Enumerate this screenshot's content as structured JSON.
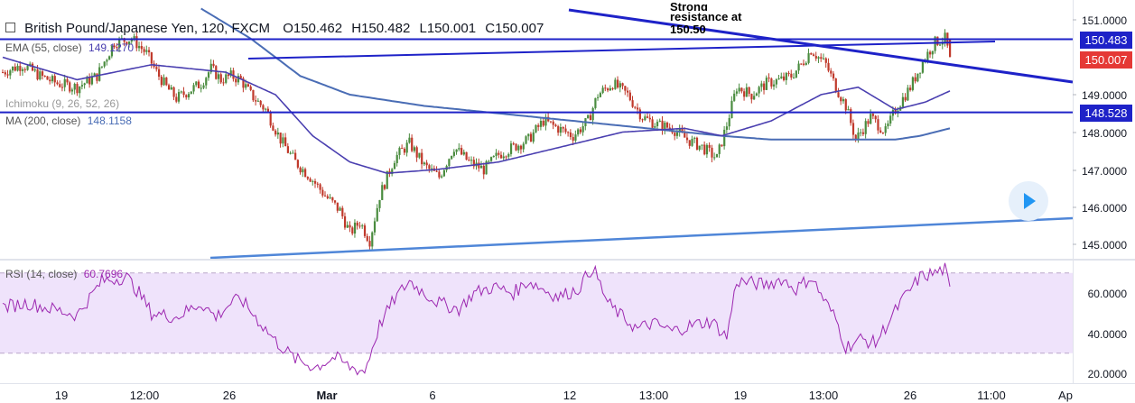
{
  "header": {
    "symbol": "British Pound/Japanese Yen, 120, FXCM",
    "open": "O150.462",
    "high": "H150.482",
    "low": "L150.001",
    "close": "C150.007"
  },
  "indicators": {
    "ema": {
      "label": "EMA (55, close)",
      "value": "149.1270"
    },
    "ichimoku": {
      "label": "Ichimoku (9, 26, 52, 26)"
    },
    "ma": {
      "label": "MA (200, close)",
      "value": "148.1158"
    },
    "rsi": {
      "label": "RSI (14, close)",
      "value": "60.7696"
    }
  },
  "annotation": {
    "line1": "Strong",
    "line2": "resistance at",
    "line3": "150.50"
  },
  "price_tags": {
    "resistance": {
      "text": "150.483",
      "color": "#1e22c8"
    },
    "current": {
      "text": "150.007",
      "color": "#e53935"
    },
    "support": {
      "text": "148.528",
      "color": "#1e22c8"
    }
  },
  "price_axis": [
    "151.0000",
    "149.0000",
    "148.0000",
    "147.0000",
    "146.0000",
    "145.0000"
  ],
  "rsi_axis": [
    "60.0000",
    "40.0000",
    "20.0000"
  ],
  "time_axis": [
    "19",
    "12:00",
    "26",
    "Mar",
    "6",
    "12",
    "13:00",
    "19",
    "13:00",
    "26",
    "11:00",
    "Ap"
  ],
  "colors": {
    "candle_up": "#4a8c3f",
    "candle_down": "#c0392b",
    "ema": "#4a3fb0",
    "ma": "#4a6db5",
    "trendline": "#1e22c8",
    "support_trend": "#4f86d8",
    "rsi_line": "#9c27b0",
    "rsi_band": "#efe3fb"
  },
  "chart_data": {
    "type": "candlestick",
    "symbol": "British Pound/Japanese Yen",
    "timeframe": "120",
    "ylim": [
      144.5,
      151.2
    ],
    "rsi_ylim": [
      15,
      80
    ],
    "rsi_band": [
      30,
      70
    ],
    "horizontal_levels": [
      150.483,
      148.528
    ],
    "close_path": [
      [
        0,
        149.6
      ],
      [
        8,
        149.8
      ],
      [
        15,
        149.5
      ],
      [
        22,
        149.3
      ],
      [
        30,
        149.2
      ],
      [
        38,
        149.5
      ],
      [
        45,
        150.4
      ],
      [
        52,
        150.5
      ],
      [
        58,
        150.1
      ],
      [
        62,
        149.6
      ],
      [
        66,
        149.2
      ],
      [
        70,
        148.9
      ],
      [
        75,
        149.1
      ],
      [
        80,
        149.3
      ],
      [
        84,
        149.7
      ],
      [
        88,
        149.4
      ],
      [
        92,
        149.5
      ],
      [
        96,
        149.4
      ],
      [
        100,
        149.0
      ],
      [
        106,
        148.6
      ],
      [
        112,
        147.8
      ],
      [
        118,
        147.2
      ],
      [
        124,
        146.8
      ],
      [
        130,
        146.3
      ],
      [
        136,
        145.9
      ],
      [
        140,
        145.3
      ],
      [
        144,
        145.6
      ],
      [
        148,
        145.1
      ],
      [
        152,
        146.3
      ],
      [
        158,
        147.3
      ],
      [
        164,
        147.7
      ],
      [
        170,
        147.1
      ],
      [
        176,
        146.8
      ],
      [
        182,
        147.6
      ],
      [
        188,
        147.2
      ],
      [
        194,
        147.0
      ],
      [
        200,
        147.4
      ],
      [
        206,
        147.6
      ],
      [
        212,
        147.8
      ],
      [
        218,
        148.3
      ],
      [
        224,
        148.1
      ],
      [
        230,
        147.9
      ],
      [
        236,
        148.3
      ],
      [
        240,
        149.0
      ],
      [
        246,
        149.3
      ],
      [
        252,
        149.0
      ],
      [
        258,
        148.4
      ],
      [
        264,
        148.2
      ],
      [
        270,
        148.1
      ],
      [
        276,
        147.8
      ],
      [
        282,
        147.6
      ],
      [
        288,
        147.3
      ],
      [
        292,
        148.2
      ],
      [
        296,
        149.2
      ],
      [
        302,
        149.0
      ],
      [
        308,
        149.3
      ],
      [
        314,
        149.4
      ],
      [
        318,
        149.5
      ],
      [
        322,
        149.8
      ],
      [
        326,
        150.2
      ],
      [
        332,
        149.8
      ],
      [
        336,
        149.2
      ],
      [
        340,
        148.7
      ],
      [
        344,
        147.8
      ],
      [
        350,
        148.4
      ],
      [
        356,
        148.0
      ],
      [
        360,
        148.6
      ],
      [
        366,
        149.2
      ],
      [
        372,
        150.0
      ],
      [
        376,
        150.4
      ],
      [
        380,
        150.5
      ],
      [
        382,
        150.0
      ]
    ],
    "ema_55": [
      [
        0,
        150.0
      ],
      [
        30,
        149.4
      ],
      [
        60,
        149.8
      ],
      [
        90,
        149.6
      ],
      [
        110,
        149.0
      ],
      [
        125,
        147.9
      ],
      [
        140,
        147.2
      ],
      [
        155,
        146.9
      ],
      [
        175,
        147.0
      ],
      [
        200,
        147.2
      ],
      [
        225,
        147.6
      ],
      [
        250,
        148.0
      ],
      [
        275,
        148.1
      ],
      [
        290,
        147.9
      ],
      [
        310,
        148.3
      ],
      [
        330,
        149.0
      ],
      [
        345,
        149.2
      ],
      [
        360,
        148.6
      ],
      [
        372,
        148.8
      ],
      [
        382,
        149.1
      ]
    ],
    "ma_200": [
      [
        80,
        151.3
      ],
      [
        100,
        150.5
      ],
      [
        120,
        149.5
      ],
      [
        140,
        149.0
      ],
      [
        170,
        148.7
      ],
      [
        200,
        148.5
      ],
      [
        230,
        148.3
      ],
      [
        260,
        148.1
      ],
      [
        290,
        147.9
      ],
      [
        310,
        147.8
      ],
      [
        340,
        147.8
      ],
      [
        360,
        147.8
      ],
      [
        370,
        147.9
      ],
      [
        382,
        148.1
      ]
    ],
    "rsi": [
      [
        0,
        53
      ],
      [
        10,
        55
      ],
      [
        20,
        52
      ],
      [
        30,
        49
      ],
      [
        40,
        66
      ],
      [
        50,
        68
      ],
      [
        55,
        60
      ],
      [
        60,
        50
      ],
      [
        70,
        48
      ],
      [
        80,
        55
      ],
      [
        86,
        48
      ],
      [
        92,
        55
      ],
      [
        96,
        57
      ],
      [
        102,
        48
      ],
      [
        110,
        36
      ],
      [
        118,
        27
      ],
      [
        126,
        23
      ],
      [
        134,
        28
      ],
      [
        140,
        23
      ],
      [
        146,
        21
      ],
      [
        152,
        44
      ],
      [
        158,
        57
      ],
      [
        164,
        66
      ],
      [
        170,
        60
      ],
      [
        176,
        55
      ],
      [
        184,
        52
      ],
      [
        190,
        60
      ],
      [
        198,
        63
      ],
      [
        206,
        60
      ],
      [
        212,
        66
      ],
      [
        218,
        62
      ],
      [
        224,
        58
      ],
      [
        232,
        62
      ],
      [
        238,
        73
      ],
      [
        244,
        55
      ],
      [
        250,
        48
      ],
      [
        256,
        42
      ],
      [
        262,
        45
      ],
      [
        270,
        41
      ],
      [
        278,
        44
      ],
      [
        286,
        46
      ],
      [
        292,
        38
      ],
      [
        296,
        66
      ],
      [
        302,
        65
      ],
      [
        308,
        64
      ],
      [
        314,
        67
      ],
      [
        320,
        62
      ],
      [
        326,
        68
      ],
      [
        332,
        55
      ],
      [
        336,
        47
      ],
      [
        340,
        33
      ],
      [
        346,
        37
      ],
      [
        352,
        35
      ],
      [
        356,
        43
      ],
      [
        362,
        55
      ],
      [
        370,
        68
      ],
      [
        376,
        70
      ],
      [
        380,
        72
      ],
      [
        382,
        61
      ]
    ]
  }
}
